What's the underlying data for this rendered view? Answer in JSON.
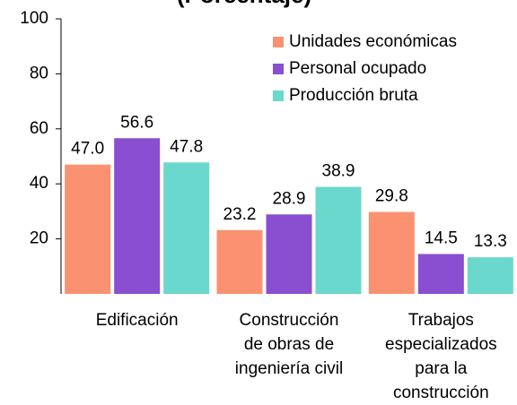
{
  "chart_data": {
    "type": "bar",
    "title": "(Porcentaje)",
    "categories": [
      "Edificación",
      "Construcción\nde obras de\ningeniería civil",
      "Trabajos\nespecializados\npara la\nconstrucción"
    ],
    "series": [
      {
        "name": "Unidades económicas",
        "color": "#fa9271",
        "values": [
          47.0,
          23.2,
          29.8
        ],
        "value_labels": [
          "47.0",
          "23.2",
          "29.8"
        ]
      },
      {
        "name": "Personal ocupado",
        "color": "#8a4fd0",
        "values": [
          56.6,
          28.9,
          14.5
        ],
        "value_labels": [
          "56.6",
          "28.9",
          "14.5"
        ]
      },
      {
        "name": "Producción bruta",
        "color": "#6ad8cc",
        "values": [
          47.8,
          38.9,
          13.3
        ],
        "value_labels": [
          "47.8",
          "38.9",
          "13.3"
        ]
      }
    ],
    "ylim": [
      0,
      100
    ],
    "yticks": [
      20,
      40,
      60,
      80,
      100
    ],
    "grid": false,
    "legend": "top-right"
  }
}
